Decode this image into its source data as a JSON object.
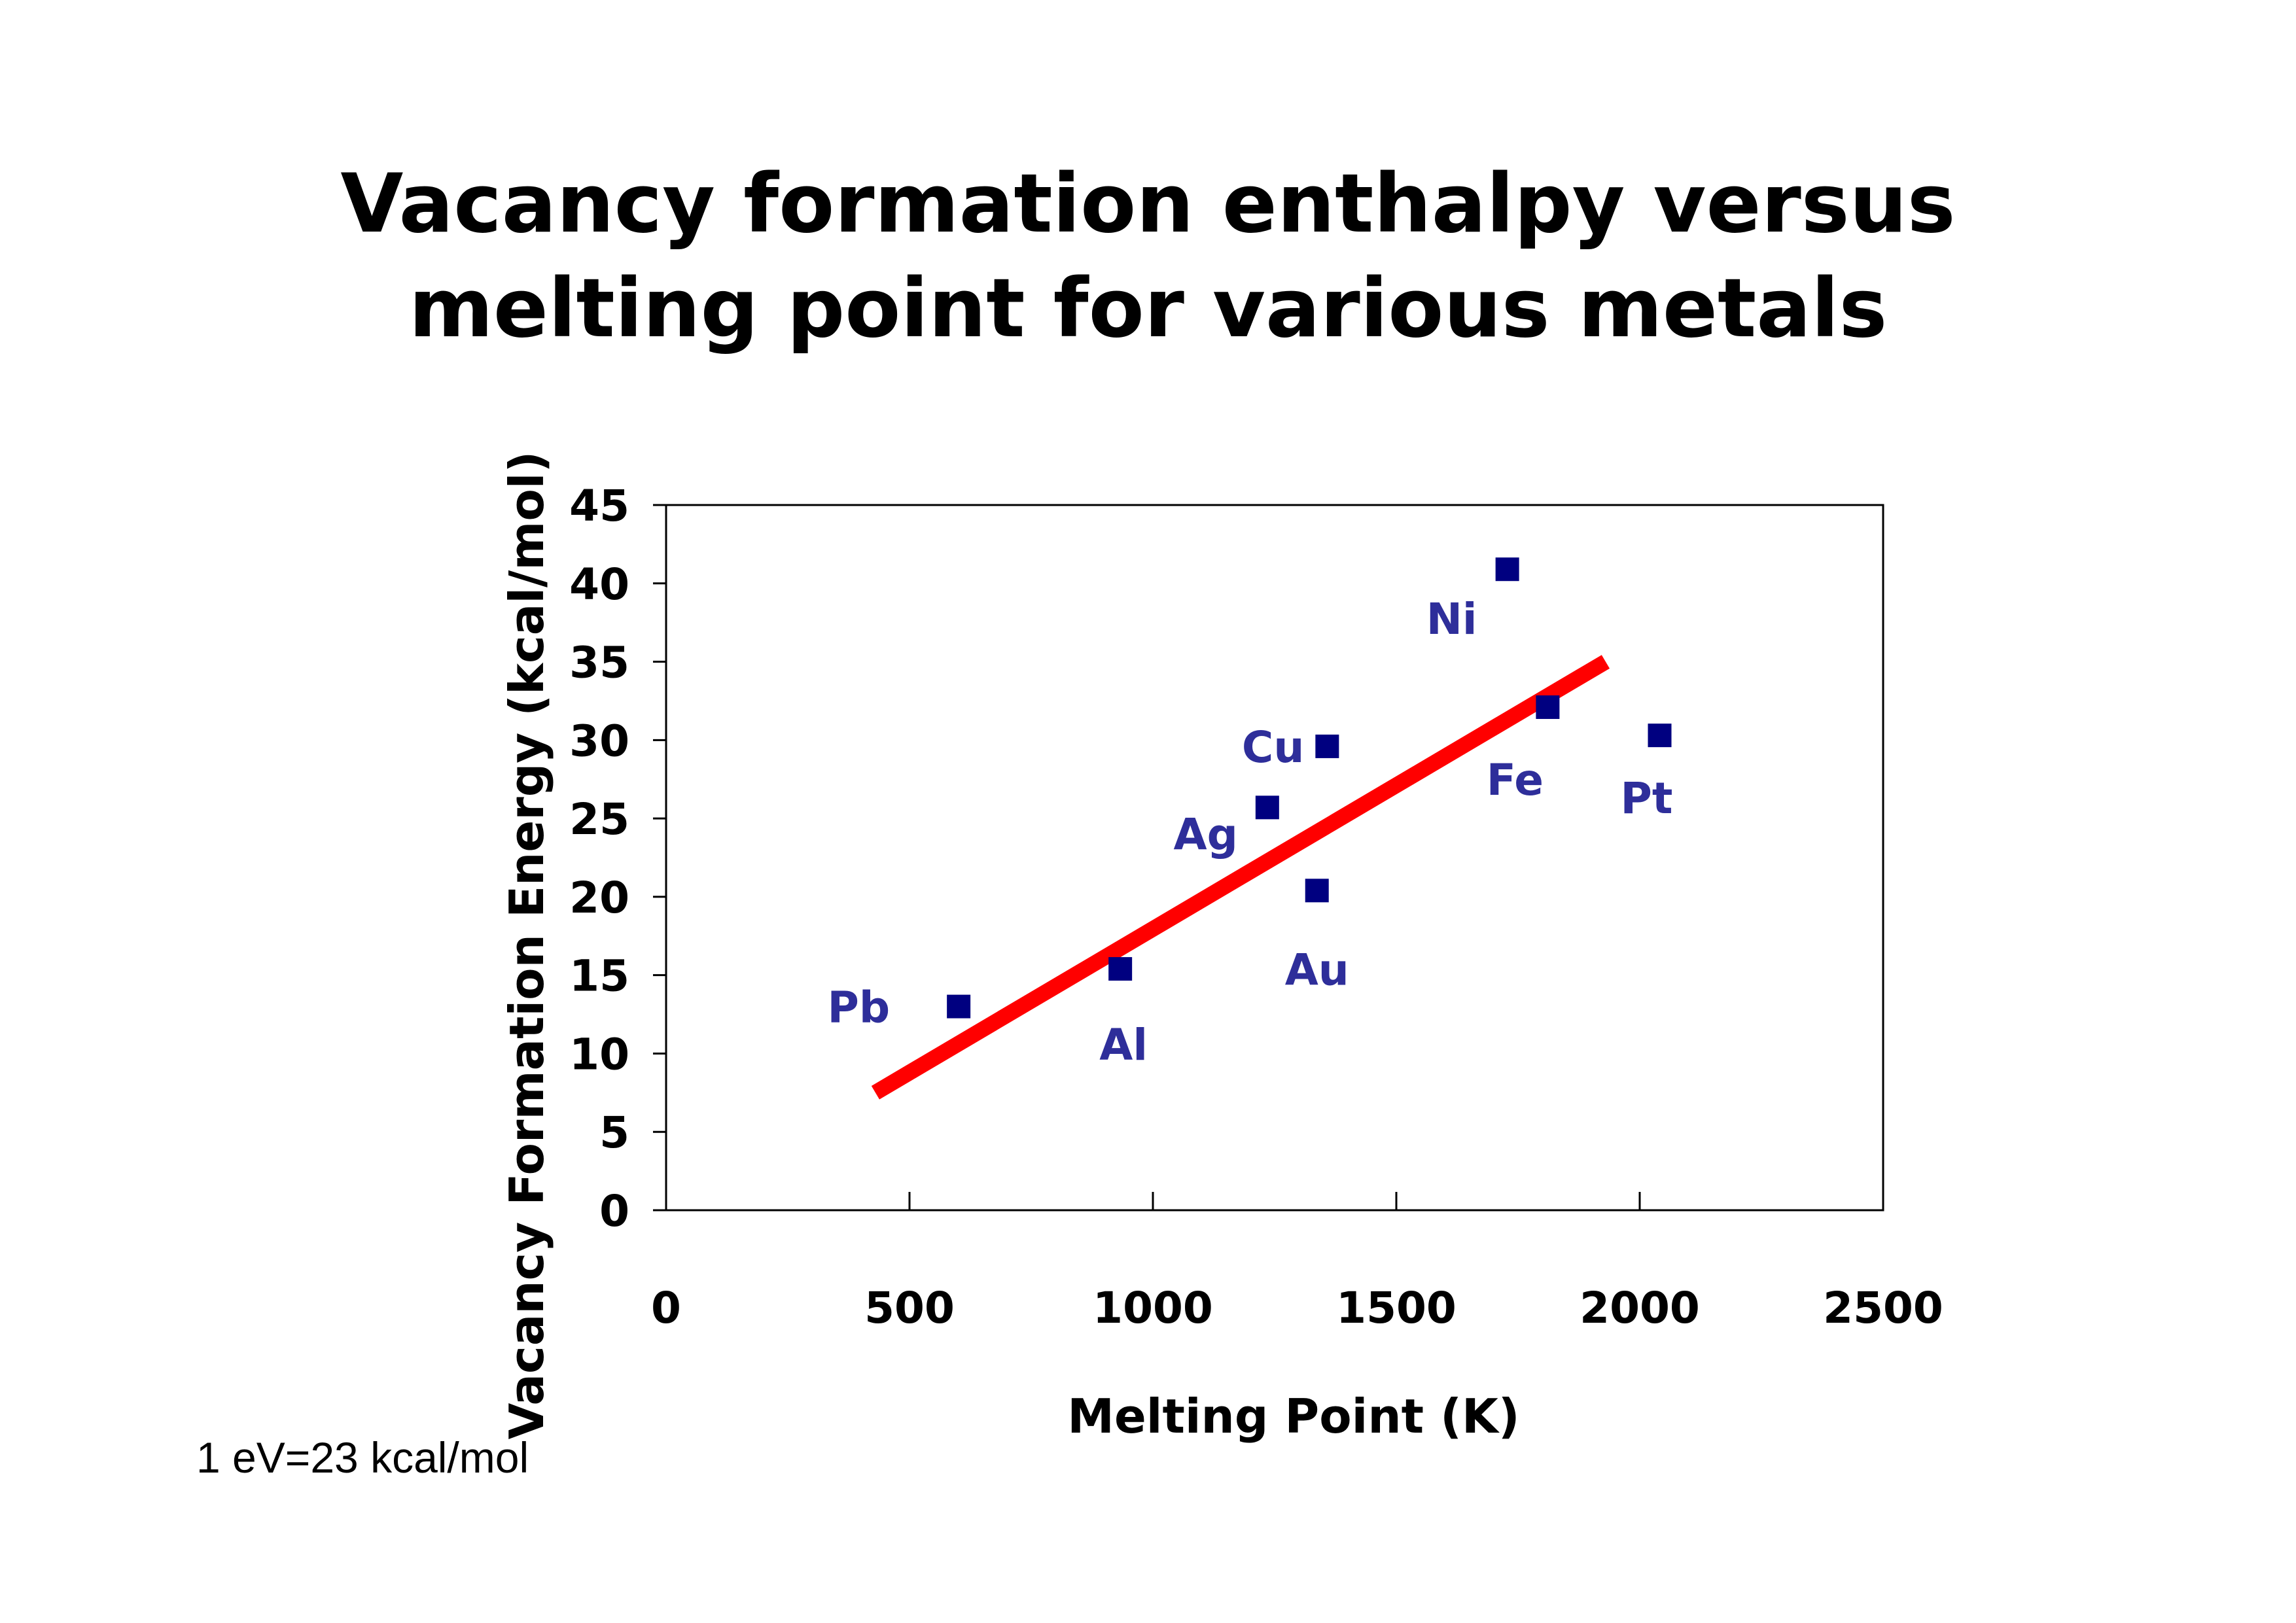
{
  "title_lines": [
    "Vacancy formation enthalpy versus",
    "melting point for various metals"
  ],
  "footnote": "1 eV=23 kcal/mol",
  "colors": {
    "points": "#000080",
    "labels": "#2E2E9A",
    "fit_line": "#FF0000",
    "axes": "#000000"
  },
  "chart_data": {
    "type": "scatter",
    "xlabel": "Melting Point (K)",
    "ylabel": "Vacancy Formation Energy (kcal/mol)",
    "xlim": [
      0,
      2500
    ],
    "ylim": [
      0,
      45
    ],
    "xticks": [
      0,
      500,
      1000,
      1500,
      2000,
      2500
    ],
    "yticks": [
      0,
      5,
      10,
      15,
      20,
      25,
      30,
      35,
      40,
      45
    ],
    "grid": false,
    "legend": "none",
    "series": [
      {
        "marker": "square",
        "points": [
          {
            "label": "Pb",
            "x": 601,
            "y": 13.0
          },
          {
            "label": "Al",
            "x": 933,
            "y": 15.4
          },
          {
            "label": "Ag",
            "x": 1235,
            "y": 25.7
          },
          {
            "label": "Au",
            "x": 1337,
            "y": 20.4
          },
          {
            "label": "Cu",
            "x": 1358,
            "y": 29.6
          },
          {
            "label": "Ni",
            "x": 1728,
            "y": 40.9
          },
          {
            "label": "Fe",
            "x": 1811,
            "y": 32.1
          },
          {
            "label": "Pt",
            "x": 2041,
            "y": 30.3
          }
        ]
      }
    ],
    "fit_line": {
      "x": [
        430,
        1930
      ],
      "y": [
        7.5,
        35.0
      ]
    }
  }
}
